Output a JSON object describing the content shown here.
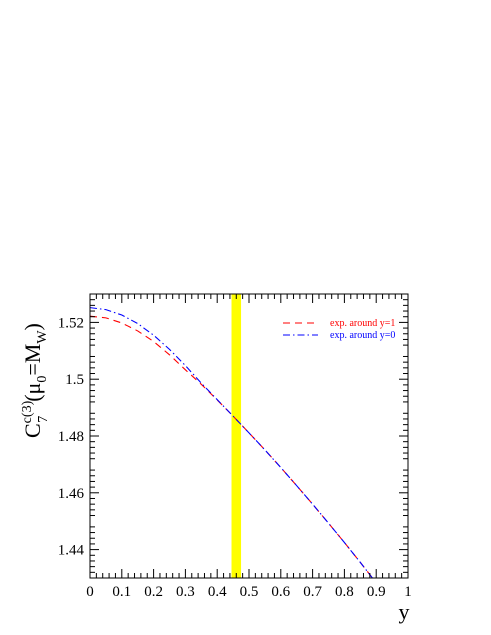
{
  "chart_data": {
    "type": "line",
    "xlabel": "y",
    "ylabel": {
      "main": "C",
      "sup": "c(3)",
      "sub": "7",
      "open": "(",
      "mu": "μ",
      "mu_sub": "0",
      "eq": "=M",
      "w_sub": "W",
      "close": ")"
    },
    "xlim": [
      0,
      1
    ],
    "ylim": [
      1.43,
      1.53
    ],
    "x_ticks": [
      0,
      0.1,
      0.2,
      0.3,
      0.4,
      0.5,
      0.6,
      0.7,
      0.8,
      0.9,
      1
    ],
    "x_tick_labels": [
      "0",
      "0.1",
      "0.2",
      "0.3",
      "0.4",
      "0.5",
      "0.6",
      "0.7",
      "0.8",
      "0.9",
      "1"
    ],
    "y_ticks": [
      1.44,
      1.46,
      1.48,
      1.5,
      1.52
    ],
    "y_tick_labels": [
      "1.44",
      "1.46",
      "1.48",
      "1.5",
      "1.52"
    ],
    "highlight_band": {
      "x_from": 0.445,
      "x_to": 0.475,
      "color": "#ffff00"
    },
    "grid": false,
    "legend_position": "top-right",
    "series": [
      {
        "name": "exp. around y=1",
        "color": "#ff0000",
        "style": "dashed",
        "x": [
          0,
          0.05,
          0.1,
          0.15,
          0.2,
          0.25,
          0.3,
          0.35,
          0.4,
          0.45,
          0.5,
          0.55,
          0.6,
          0.65,
          0.7,
          0.75,
          0.8,
          0.85,
          0.9,
          0.95,
          1
        ],
        "y": [
          1.5222,
          1.5216,
          1.5198,
          1.517,
          1.5133,
          1.5086,
          1.5033,
          1.4982,
          1.4927,
          1.487,
          1.4811,
          1.4751,
          1.4689,
          1.4625,
          1.456,
          1.4493,
          1.4425,
          1.4355,
          1.4283,
          1.4211,
          1.4137
        ]
      },
      {
        "name": "exp. around y=0",
        "color": "#0000ff",
        "style": "dashdot",
        "x": [
          0,
          0.05,
          0.1,
          0.15,
          0.2,
          0.25,
          0.3,
          0.35,
          0.4,
          0.45,
          0.5,
          0.55,
          0.6,
          0.65,
          0.7,
          0.75,
          0.8,
          0.85,
          0.9,
          0.95,
          1
        ],
        "y": [
          1.5252,
          1.5245,
          1.5226,
          1.5196,
          1.5155,
          1.5105,
          1.5048,
          1.4986,
          1.4928,
          1.487,
          1.4811,
          1.4751,
          1.4689,
          1.4625,
          1.456,
          1.4493,
          1.4425,
          1.4355,
          1.4283,
          1.4211,
          1.4137
        ]
      }
    ]
  }
}
